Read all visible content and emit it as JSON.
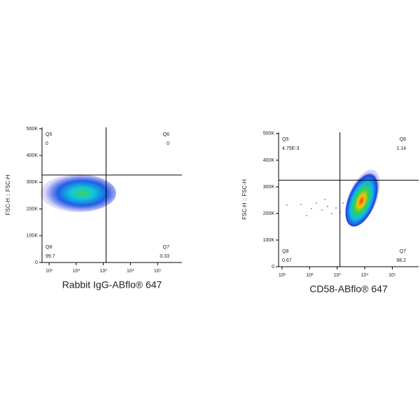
{
  "chart_data": [
    {
      "type": "quadrant-density",
      "x_label": "Rabbit IgG-ABflo® 647",
      "y_label": "FSC-H :: FSC-H",
      "x_log": true,
      "xlim": [
        5.5,
        790000
      ],
      "xticks": [
        {
          "value": 10,
          "label": "10¹"
        },
        {
          "value": 100,
          "label": "10²"
        },
        {
          "value": 1000,
          "label": "10³"
        },
        {
          "value": 10000,
          "label": "10⁴"
        },
        {
          "value": 100000,
          "label": "10⁵"
        }
      ],
      "ylim": [
        0,
        505000
      ],
      "yticks": [
        0,
        {
          "value": 100000,
          "label": "100K"
        },
        {
          "value": 200000,
          "label": "200K"
        },
        {
          "value": 300000,
          "label": "300K"
        },
        {
          "value": 400000,
          "label": "400K"
        },
        {
          "value": 500000,
          "label": "500K"
        }
      ],
      "gate_x": 1260,
      "gate_y": 327000,
      "quadrants": [
        {
          "name": "Q5",
          "value": 0
        },
        {
          "name": "Q6",
          "value": 0
        },
        {
          "name": "Q8",
          "value": 99.7
        },
        {
          "name": "Q7",
          "value": 0.33
        }
      ]
    },
    {
      "type": "quadrant-density",
      "x_label": "CD58-ABflo® 647",
      "y_label": "FSC-H :: FSC-H",
      "x_log": true,
      "xlim": [
        7.5,
        900000
      ],
      "xticks": [
        {
          "value": 10,
          "label": "10¹"
        },
        {
          "value": 100,
          "label": "10²"
        },
        {
          "value": 1000,
          "label": "10³"
        },
        {
          "value": 10000,
          "label": "10⁴"
        },
        {
          "value": 100000,
          "label": "10⁵"
        }
      ],
      "ylim": [
        0,
        505000
      ],
      "yticks": [
        0,
        {
          "value": 100000,
          "label": "100K"
        },
        {
          "value": 200000,
          "label": "200K"
        },
        {
          "value": 300000,
          "label": "300K"
        },
        {
          "value": 400000,
          "label": "400K"
        },
        {
          "value": 500000,
          "label": "500K"
        }
      ],
      "gate_x": 1260,
      "gate_y": 325000,
      "quadrants": [
        {
          "name": "Q5",
          "value": 0.00475,
          "value_label": "4.75E-3"
        },
        {
          "name": "Q6",
          "value": 1.14
        },
        {
          "name": "Q8",
          "value": 0.67
        },
        {
          "name": "Q7",
          "value": 98.2
        }
      ]
    }
  ]
}
